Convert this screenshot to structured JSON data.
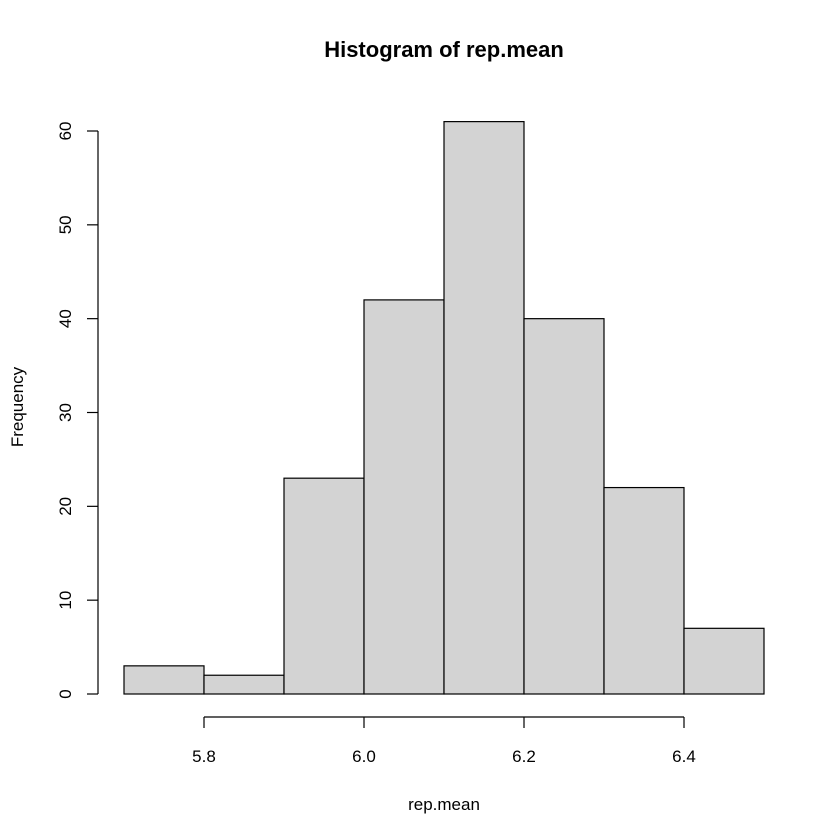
{
  "chart_data": {
    "type": "bar",
    "title": "Histogram of rep.mean",
    "xlabel": "rep.mean",
    "ylabel": "Frequency",
    "bins": [
      {
        "x0": 5.7,
        "x1": 5.8,
        "count": 3
      },
      {
        "x0": 5.8,
        "x1": 5.9,
        "count": 2
      },
      {
        "x0": 5.9,
        "x1": 6.0,
        "count": 23
      },
      {
        "x0": 6.0,
        "x1": 6.1,
        "count": 42
      },
      {
        "x0": 6.1,
        "x1": 6.2,
        "count": 61
      },
      {
        "x0": 6.2,
        "x1": 6.3,
        "count": 40
      },
      {
        "x0": 6.3,
        "x1": 6.4,
        "count": 22
      },
      {
        "x0": 6.4,
        "x1": 6.5,
        "count": 7
      }
    ],
    "xlim": [
      5.7,
      6.5
    ],
    "ylim": [
      0,
      61
    ],
    "x_ticks": [
      5.8,
      6.0,
      6.2,
      6.4
    ],
    "x_tick_labels": [
      "5.8",
      "6.0",
      "6.2",
      "6.4"
    ],
    "y_ticks": [
      0,
      10,
      20,
      30,
      40,
      50,
      60
    ],
    "y_tick_labels": [
      "0",
      "10",
      "20",
      "30",
      "40",
      "50",
      "60"
    ],
    "grid": false,
    "colors": {
      "bar_fill": "#d3d3d3",
      "bar_stroke": "#000000"
    }
  }
}
